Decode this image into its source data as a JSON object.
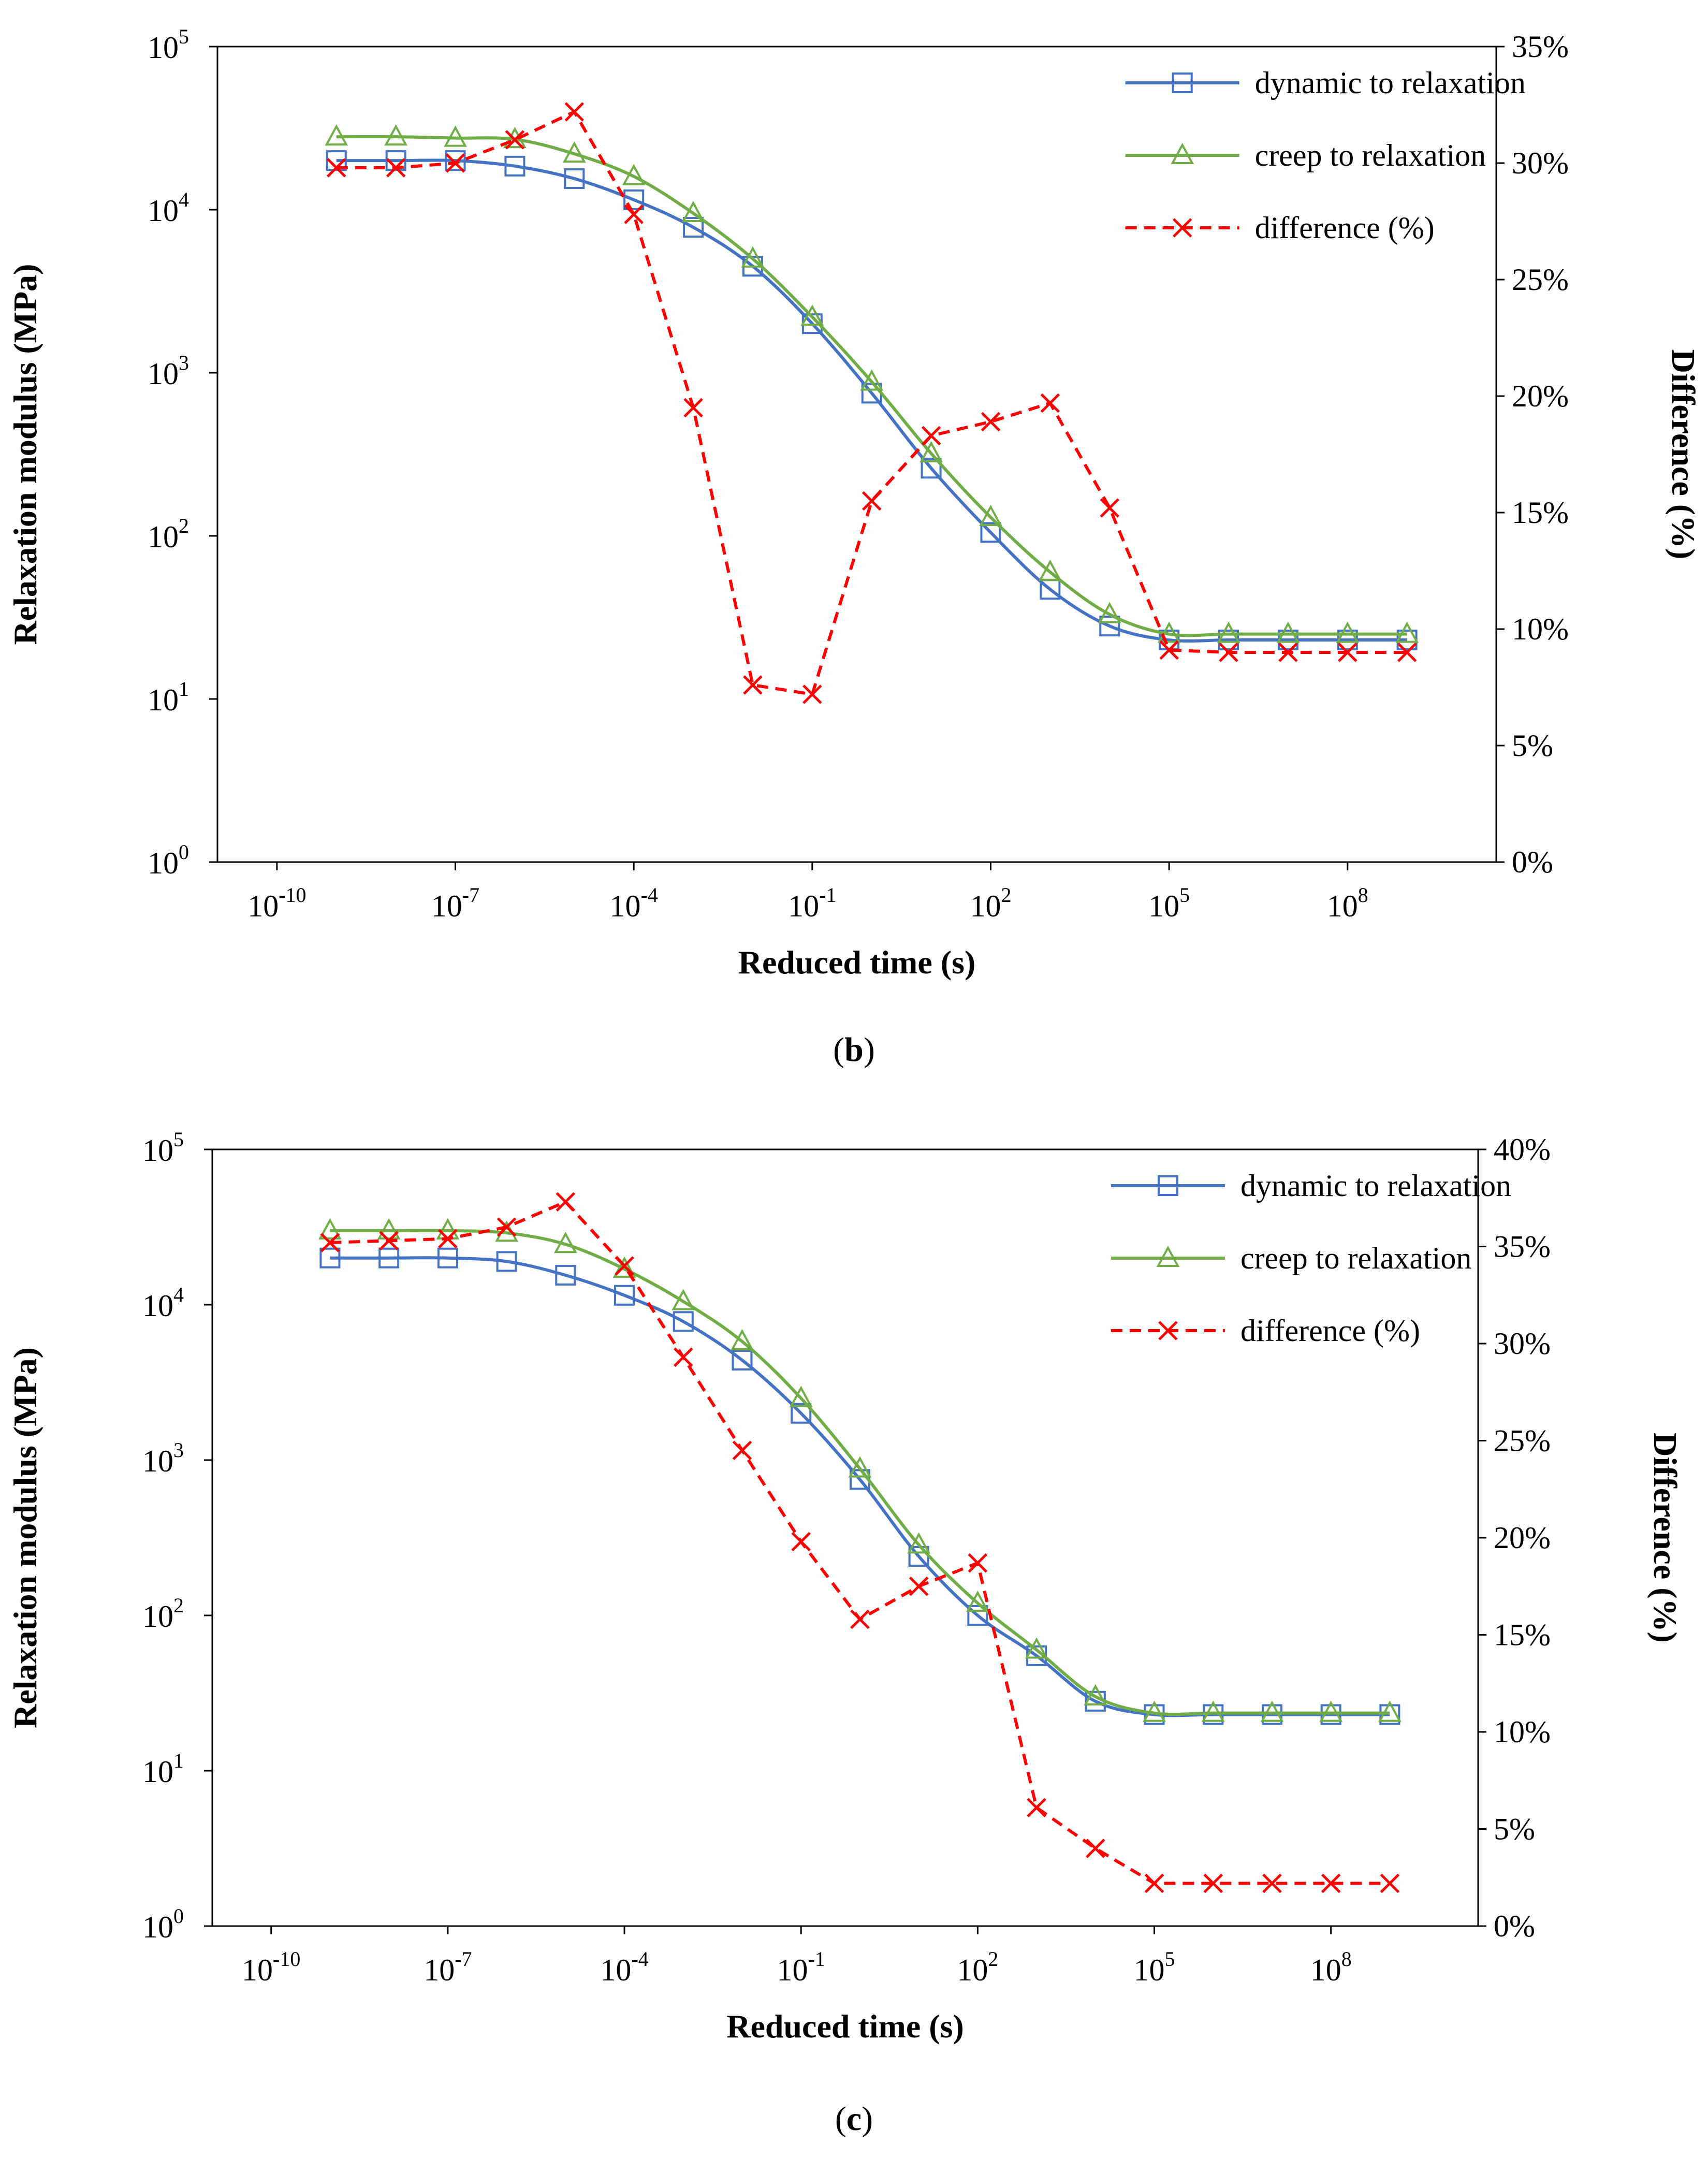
{
  "chart_data": [
    {
      "type": "line",
      "panel_label": "b",
      "xlabel": "Reduced time (s)",
      "ylabel": "Relaxation modulus (MPa)",
      "y2label": "Difference (%)",
      "xscale": "log",
      "yscale": "log",
      "xlim_exponent": [
        -11,
        10.5
      ],
      "x_ticks": [
        -10,
        -7,
        -4,
        -1,
        2,
        5,
        8
      ],
      "ylim_exponent": [
        0,
        5
      ],
      "y_ticks": [
        0,
        1,
        2,
        3,
        4,
        5
      ],
      "y2lim": [
        0,
        35
      ],
      "y2_ticks": [
        "0%",
        "5%",
        "10%",
        "15%",
        "20%",
        "25%",
        "30%",
        "35%"
      ],
      "legend_position": "top-right",
      "colors": {
        "dynamic": "#4472c4",
        "creep": "#70ad47",
        "difference": "#ff0000"
      },
      "x_exponents": [
        -9,
        -8,
        -7,
        -6,
        -5,
        -4,
        -3,
        -2,
        -1,
        0,
        1,
        2,
        3,
        4,
        5,
        6,
        7,
        8,
        9
      ],
      "series": [
        {
          "name": "dynamic to relaxation",
          "axis": "left",
          "marker": "square",
          "line": "solid",
          "values": [
            20000,
            20000,
            20000,
            18500,
            15500,
            11500,
            7800,
            4500,
            2000,
            750,
            260,
            105,
            47,
            28,
            23,
            23,
            23,
            23,
            23
          ]
        },
        {
          "name": "creep to relaxation",
          "axis": "left",
          "marker": "triangle",
          "line": "solid",
          "values": [
            28000,
            28000,
            27500,
            27000,
            22000,
            16000,
            9500,
            5000,
            2200,
            880,
            320,
            130,
            60,
            33,
            25,
            25,
            25,
            25,
            25
          ]
        },
        {
          "name": "difference (%)",
          "axis": "right",
          "marker": "x",
          "line": "dashed",
          "values": [
            29.8,
            29.8,
            30.0,
            31.0,
            32.2,
            27.8,
            19.5,
            7.6,
            7.2,
            15.5,
            18.3,
            18.9,
            19.7,
            15.2,
            9.1,
            9.0,
            9.0,
            9.0,
            9.0
          ]
        }
      ]
    },
    {
      "type": "line",
      "panel_label": "c",
      "xlabel": "Reduced time (s)",
      "ylabel": "Relaxation modulus (MPa)",
      "y2label": "Difference (%)",
      "xscale": "log",
      "yscale": "log",
      "xlim_exponent": [
        -11,
        10.5
      ],
      "x_ticks": [
        -10,
        -7,
        -4,
        -1,
        2,
        5,
        8
      ],
      "ylim_exponent": [
        0,
        5
      ],
      "y_ticks": [
        0,
        1,
        2,
        3,
        4,
        5
      ],
      "y2lim": [
        0,
        40
      ],
      "y2_ticks": [
        "0%",
        "5%",
        "10%",
        "15%",
        "20%",
        "25%",
        "30%",
        "35%",
        "40%"
      ],
      "legend_position": "top-right",
      "colors": {
        "dynamic": "#4472c4",
        "creep": "#70ad47",
        "difference": "#ff0000"
      },
      "x_exponents": [
        -9,
        -8,
        -7,
        -6,
        -5,
        -4,
        -3,
        -2,
        -1,
        0,
        1,
        2,
        3,
        4,
        5,
        6,
        7,
        8,
        9
      ],
      "series": [
        {
          "name": "dynamic to relaxation",
          "axis": "left",
          "marker": "square",
          "line": "solid",
          "values": [
            20000,
            20000,
            20000,
            19000,
            15500,
            11500,
            7800,
            4400,
            2000,
            750,
            240,
            100,
            55,
            28,
            23,
            23,
            23,
            23,
            23
          ]
        },
        {
          "name": "creep to relaxation",
          "axis": "left",
          "marker": "triangle",
          "line": "solid",
          "values": [
            30000,
            30000,
            30000,
            29000,
            24500,
            17000,
            10500,
            5800,
            2500,
            880,
            285,
            120,
            60,
            30,
            23.5,
            23.5,
            23.5,
            23.5,
            23.5
          ]
        },
        {
          "name": "difference (%)",
          "axis": "right",
          "marker": "x",
          "line": "dashed",
          "values": [
            35.2,
            35.3,
            35.4,
            36.0,
            37.3,
            34.0,
            29.3,
            24.5,
            19.8,
            15.8,
            17.5,
            18.7,
            6.1,
            4.0,
            2.2,
            2.2,
            2.2,
            2.2,
            2.2
          ]
        }
      ]
    }
  ]
}
